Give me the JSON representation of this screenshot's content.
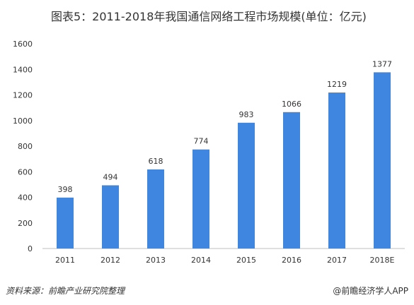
{
  "title": "图表5：2011-2018年我国通信网络工程市场规模(单位：亿元)",
  "source": "资料来源：前瞻产业研究院整理",
  "credit": "@前瞻经济学人APP",
  "colors": {
    "bar": "#3F86E0",
    "axis": "#bfbfbf",
    "text": "#333333"
  },
  "chart_data": {
    "type": "bar",
    "categories": [
      "2011",
      "2012",
      "2013",
      "2014",
      "2015",
      "2016",
      "2017",
      "2018E"
    ],
    "values": [
      398,
      494,
      618,
      774,
      983,
      1066,
      1219,
      1377
    ],
    "ylim": [
      0,
      1600
    ],
    "yticks": [
      "0",
      "200",
      "400",
      "600",
      "800",
      "1000",
      "1200",
      "1400",
      "1600"
    ],
    "data_labels": [
      "398",
      "494",
      "618",
      "774",
      "983",
      "1066",
      "1219",
      "1377"
    ],
    "grid": false,
    "legend": "none"
  }
}
